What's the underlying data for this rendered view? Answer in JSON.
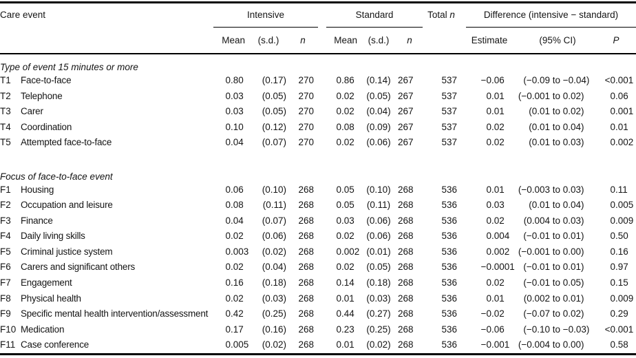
{
  "colors": {
    "text": "#141414",
    "background": "#ffffff",
    "rules": "#000000"
  },
  "header": {
    "care_event": "Care event",
    "intensive": "Intensive",
    "standard": "Standard",
    "total_label": "Total",
    "total_n_italic": "n",
    "difference": "Difference (intensive − standard)",
    "mean": "Mean",
    "sd": "(s.d.)",
    "n": "n",
    "estimate": "Estimate",
    "ci": "(95% CI)",
    "p": "P"
  },
  "table": {
    "sections": [
      {
        "title": "Type of event 15 minutes or more",
        "rows": [
          {
            "code": "T1",
            "label": "Face-to-face",
            "i_mean": "0.80",
            "i_sd": "(0.17)",
            "i_n": "270",
            "s_mean": "0.86",
            "s_sd": "(0.14)",
            "s_n": "267",
            "total_n": "537",
            "estimate": "−0.06",
            "ci": "(−0.09 to −0.04)",
            "p": "<0.001"
          },
          {
            "code": "T2",
            "label": "Telephone",
            "i_mean": "0.03",
            "i_sd": "(0.05)",
            "i_n": "270",
            "s_mean": "0.02",
            "s_sd": "(0.05)",
            "s_n": "267",
            "total_n": "537",
            "estimate": "0.01",
            "ci": "(−0.001 to 0.02)",
            "p": "0.06"
          },
          {
            "code": "T3",
            "label": "Carer",
            "i_mean": "0.03",
            "i_sd": "(0.05)",
            "i_n": "270",
            "s_mean": "0.02",
            "s_sd": "(0.04)",
            "s_n": "267",
            "total_n": "537",
            "estimate": "0.01",
            "ci": "(0.01 to 0.02)",
            "p": "0.001"
          },
          {
            "code": "T4",
            "label": "Coordination",
            "i_mean": "0.10",
            "i_sd": "(0.12)",
            "i_n": "270",
            "s_mean": "0.08",
            "s_sd": "(0.09)",
            "s_n": "267",
            "total_n": "537",
            "estimate": "0.02",
            "ci": "(0.01 to 0.04)",
            "p": "0.01"
          },
          {
            "code": "T5",
            "label": "Attempted face-to-face",
            "i_mean": "0.04",
            "i_sd": "(0.07)",
            "i_n": "270",
            "s_mean": "0.02",
            "s_sd": "(0.06)",
            "s_n": "267",
            "total_n": "537",
            "estimate": "0.02",
            "ci": "(0.01 to 0.03)",
            "p": "0.002"
          }
        ]
      },
      {
        "title": "Focus of face-to-face event",
        "rows": [
          {
            "code": "F1",
            "label": "Housing",
            "i_mean": "0.06",
            "i_sd": "(0.10)",
            "i_n": "268",
            "s_mean": "0.05",
            "s_sd": "(0.10)",
            "s_n": "268",
            "total_n": "536",
            "estimate": "0.01",
            "ci": "(−0.003 to 0.03)",
            "p": "0.11"
          },
          {
            "code": "F2",
            "label": "Occupation and leisure",
            "i_mean": "0.08",
            "i_sd": "(0.11)",
            "i_n": "268",
            "s_mean": "0.05",
            "s_sd": "(0.11)",
            "s_n": "268",
            "total_n": "536",
            "estimate": "0.03",
            "ci": "(0.01 to 0.04)",
            "p": "0.005"
          },
          {
            "code": "F3",
            "label": "Finance",
            "i_mean": "0.04",
            "i_sd": "(0.07)",
            "i_n": "268",
            "s_mean": "0.03",
            "s_sd": "(0.06)",
            "s_n": "268",
            "total_n": "536",
            "estimate": "0.02",
            "ci": "(0.004 to 0.03)",
            "p": "0.009"
          },
          {
            "code": "F4",
            "label": "Daily living skills",
            "i_mean": "0.02",
            "i_sd": "(0.06)",
            "i_n": "268",
            "s_mean": "0.02",
            "s_sd": "(0.06)",
            "s_n": "268",
            "total_n": "536",
            "estimate": "0.004",
            "ci": "(−0.01 to 0.01)",
            "p": "0.50"
          },
          {
            "code": "F5",
            "label": "Criminal justice system",
            "i_mean": "0.003",
            "i_sd": "(0.02)",
            "i_n": "268",
            "s_mean": "0.002",
            "s_sd": "(0.01)",
            "s_n": "268",
            "total_n": "536",
            "estimate": "0.002",
            "ci": "(−0.001 to 0.00)",
            "p": "0.16"
          },
          {
            "code": "F6",
            "label": "Carers and significant others",
            "i_mean": "0.02",
            "i_sd": "(0.04)",
            "i_n": "268",
            "s_mean": "0.02",
            "s_sd": "(0.05)",
            "s_n": "268",
            "total_n": "536",
            "estimate": "−0.0001",
            "ci": "(−0.01 to 0.01)",
            "p": "0.97"
          },
          {
            "code": "F7",
            "label": "Engagement",
            "i_mean": "0.16",
            "i_sd": "(0.18)",
            "i_n": "268",
            "s_mean": "0.14",
            "s_sd": "(0.18)",
            "s_n": "268",
            "total_n": "536",
            "estimate": "0.02",
            "ci": "(−0.01 to 0.05)",
            "p": "0.15"
          },
          {
            "code": "F8",
            "label": "Physical health",
            "i_mean": "0.02",
            "i_sd": "(0.03)",
            "i_n": "268",
            "s_mean": "0.01",
            "s_sd": "(0.03)",
            "s_n": "268",
            "total_n": "536",
            "estimate": "0.01",
            "ci": "(0.002 to 0.01)",
            "p": "0.009"
          },
          {
            "code": "F9",
            "label": "Specific mental health intervention/assessment",
            "i_mean": "0.42",
            "i_sd": "(0.25)",
            "i_n": "268",
            "s_mean": "0.44",
            "s_sd": "(0.27)",
            "s_n": "268",
            "total_n": "536",
            "estimate": "−0.02",
            "ci": "(−0.07 to 0.02)",
            "p": "0.29"
          },
          {
            "code": "F10",
            "label": "Medication",
            "i_mean": "0.17",
            "i_sd": "(0.16)",
            "i_n": "268",
            "s_mean": "0.23",
            "s_sd": "(0.25)",
            "s_n": "268",
            "total_n": "536",
            "estimate": "−0.06",
            "ci": "(−0.10 to −0.03)",
            "p": "<0.001"
          },
          {
            "code": "F11",
            "label": "Case conference",
            "i_mean": "0.005",
            "i_sd": "(0.02)",
            "i_n": "268",
            "s_mean": "0.01",
            "s_sd": "(0.02)",
            "s_n": "268",
            "total_n": "536",
            "estimate": "−0.001",
            "ci": "(−0.004 to 0.00)",
            "p": "0.58"
          }
        ]
      }
    ]
  }
}
